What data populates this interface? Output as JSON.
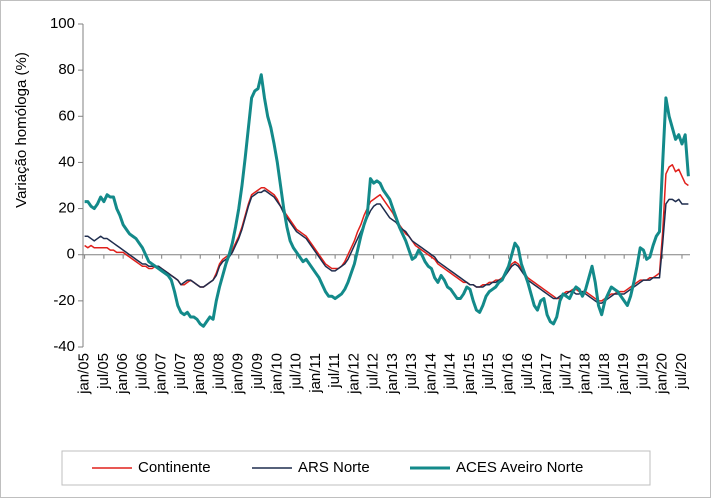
{
  "chart_data": {
    "type": "line",
    "ylabel": "Variação homóloga (%)",
    "ylim": [
      -40,
      100
    ],
    "yticks": [
      -40,
      -20,
      0,
      20,
      40,
      60,
      80,
      100
    ],
    "legend": "bottom",
    "categories": [
      "jan/05",
      null,
      null,
      null,
      null,
      null,
      "jul/05",
      null,
      null,
      null,
      null,
      null,
      "jan/06",
      null,
      null,
      null,
      null,
      null,
      "jul/06",
      null,
      null,
      null,
      null,
      null,
      "jan/07",
      null,
      null,
      null,
      null,
      null,
      "jul/07",
      null,
      null,
      null,
      null,
      null,
      "jan/08",
      null,
      null,
      null,
      null,
      null,
      "jul/08",
      null,
      null,
      null,
      null,
      null,
      "jan/09",
      null,
      null,
      null,
      null,
      null,
      "jul/09",
      null,
      null,
      null,
      null,
      null,
      "jan/10",
      null,
      null,
      null,
      null,
      null,
      "jul/10",
      null,
      null,
      null,
      null,
      null,
      "jan/11",
      null,
      null,
      null,
      null,
      null,
      "jul/11",
      null,
      null,
      null,
      null,
      null,
      "jan/12",
      null,
      null,
      null,
      null,
      null,
      "jul/12",
      null,
      null,
      null,
      null,
      null,
      "jan/13",
      null,
      null,
      null,
      null,
      null,
      "jul/13",
      null,
      null,
      null,
      null,
      null,
      "jan/14",
      null,
      null,
      null,
      null,
      null,
      "jul/14",
      null,
      null,
      null,
      null,
      null,
      "jan/15",
      null,
      null,
      null,
      null,
      null,
      "jul/15",
      null,
      null,
      null,
      null,
      null,
      "jan/16",
      null,
      null,
      null,
      null,
      null,
      "jul/16",
      null,
      null,
      null,
      null,
      null,
      "jan/17",
      null,
      null,
      null,
      null,
      null,
      "jul/17",
      null,
      null,
      null,
      null,
      null,
      "jan/18",
      null,
      null,
      null,
      null,
      null,
      "jul/18",
      null,
      null,
      null,
      null,
      null,
      "jan/19",
      null,
      null,
      null,
      null,
      null,
      "jul/19",
      null,
      null,
      null,
      null,
      null,
      "jan/20",
      null,
      null,
      null,
      null,
      null,
      "jul/20",
      null,
      null
    ],
    "series": [
      {
        "name": "Continente",
        "color": "#e0201b",
        "width": 1.5,
        "values": [
          4,
          3,
          4,
          3,
          3,
          3,
          3,
          3,
          2,
          2,
          1,
          1,
          1,
          0,
          -1,
          -2,
          -3,
          -4,
          -5,
          -5,
          -6,
          -6,
          -5,
          -5,
          -6,
          -7,
          -8,
          -9,
          -10,
          -11,
          -13,
          -13,
          -12,
          -11,
          -12,
          -13,
          -14,
          -14,
          -13,
          -12,
          -11,
          -8,
          -4,
          -2,
          -1,
          0,
          2,
          5,
          8,
          12,
          17,
          22,
          26,
          27,
          28,
          29,
          29,
          28,
          27,
          26,
          24,
          21,
          19,
          17,
          15,
          13,
          11,
          10,
          9,
          8,
          6,
          4,
          2,
          0,
          -2,
          -4,
          -5,
          -6,
          -6,
          -6,
          -5,
          -3,
          0,
          3,
          6,
          10,
          13,
          17,
          20,
          23,
          24,
          25,
          26,
          24,
          22,
          20,
          18,
          15,
          13,
          11,
          9,
          8,
          6,
          4,
          3,
          2,
          1,
          0,
          -1,
          -2,
          -4,
          -5,
          -6,
          -7,
          -8,
          -9,
          -10,
          -11,
          -12,
          -12,
          -13,
          -13,
          -14,
          -14,
          -13,
          -13,
          -12,
          -12,
          -11,
          -11,
          -10,
          -8,
          -6,
          -4,
          -3,
          -4,
          -6,
          -8,
          -10,
          -11,
          -12,
          -13,
          -14,
          -15,
          -16,
          -17,
          -18,
          -19,
          -19,
          -17,
          -16,
          -16,
          -15,
          -15,
          -16,
          -16,
          -16,
          -17,
          -18,
          -19,
          -20,
          -20,
          -19,
          -18,
          -17,
          -17,
          -16,
          -16,
          -16,
          -15,
          -14,
          -13,
          -12,
          -11,
          -11,
          -11,
          -10,
          -10,
          -9,
          -8,
          10,
          35,
          38,
          39,
          36,
          37,
          34,
          31,
          30
        ]
      },
      {
        "name": "ARS Norte",
        "color": "#1f2d4e",
        "width": 1.5,
        "values": [
          8,
          8,
          7,
          6,
          7,
          8,
          7,
          7,
          6,
          5,
          4,
          3,
          2,
          1,
          0,
          -1,
          -2,
          -3,
          -4,
          -4,
          -5,
          -5,
          -5,
          -5,
          -6,
          -7,
          -8,
          -9,
          -10,
          -11,
          -13,
          -12,
          -11,
          -11,
          -12,
          -13,
          -14,
          -14,
          -13,
          -12,
          -11,
          -9,
          -5,
          -3,
          -2,
          -1,
          1,
          4,
          7,
          11,
          16,
          21,
          25,
          26,
          27,
          27,
          28,
          27,
          26,
          25,
          23,
          21,
          18,
          16,
          14,
          12,
          10,
          9,
          8,
          7,
          5,
          3,
          1,
          -1,
          -3,
          -5,
          -6,
          -7,
          -7,
          -6,
          -5,
          -4,
          -2,
          1,
          4,
          7,
          10,
          13,
          16,
          19,
          21,
          22,
          22,
          20,
          18,
          16,
          15,
          14,
          12,
          11,
          10,
          8,
          6,
          5,
          4,
          3,
          2,
          1,
          0,
          -1,
          -3,
          -4,
          -5,
          -6,
          -7,
          -8,
          -9,
          -10,
          -11,
          -12,
          -13,
          -13,
          -14,
          -14,
          -14,
          -13,
          -13,
          -12,
          -12,
          -11,
          -11,
          -9,
          -7,
          -5,
          -4,
          -5,
          -7,
          -9,
          -11,
          -12,
          -13,
          -14,
          -15,
          -16,
          -17,
          -18,
          -19,
          -19,
          -18,
          -17,
          -17,
          -16,
          -16,
          -17,
          -17,
          -16,
          -17,
          -18,
          -19,
          -20,
          -21,
          -21,
          -20,
          -19,
          -18,
          -17,
          -17,
          -17,
          -17,
          -16,
          -15,
          -14,
          -13,
          -12,
          -11,
          -11,
          -11,
          -10,
          -10,
          -10,
          5,
          22,
          24,
          24,
          23,
          24,
          22,
          22,
          22
        ]
      },
      {
        "name": "ACES Aveiro Norte",
        "color": "#138a8a",
        "width": 3,
        "values": [
          23,
          23,
          21,
          20,
          22,
          25,
          23,
          26,
          25,
          25,
          20,
          17,
          13,
          11,
          9,
          8,
          7,
          5,
          3,
          0,
          -3,
          -4,
          -5,
          -6,
          -7,
          -8,
          -9,
          -11,
          -16,
          -22,
          -25,
          -26,
          -25,
          -27,
          -27,
          -28,
          -30,
          -31,
          -29,
          -27,
          -28,
          -20,
          -14,
          -9,
          -4,
          0,
          5,
          12,
          20,
          30,
          42,
          55,
          68,
          71,
          72,
          78,
          68,
          60,
          55,
          48,
          40,
          30,
          20,
          12,
          6,
          3,
          1,
          -1,
          -3,
          -2,
          -4,
          -6,
          -8,
          -10,
          -13,
          -16,
          -18,
          -18,
          -19,
          -18,
          -17,
          -15,
          -12,
          -8,
          -4,
          2,
          8,
          13,
          17,
          33,
          31,
          32,
          31,
          28,
          26,
          24,
          20,
          16,
          12,
          9,
          6,
          2,
          -2,
          -1,
          2,
          0,
          -3,
          -5,
          -6,
          -10,
          -12,
          -9,
          -11,
          -14,
          -15,
          -17,
          -19,
          -19,
          -17,
          -14,
          -15,
          -20,
          -24,
          -25,
          -22,
          -18,
          -16,
          -15,
          -14,
          -12,
          -11,
          -8,
          -5,
          0,
          5,
          3,
          -4,
          -8,
          -12,
          -17,
          -22,
          -24,
          -20,
          -19,
          -26,
          -29,
          -30,
          -27,
          -20,
          -17,
          -18,
          -19,
          -16,
          -14,
          -15,
          -18,
          -15,
          -10,
          -5,
          -12,
          -22,
          -26,
          -20,
          -17,
          -14,
          -15,
          -16,
          -18,
          -20,
          -22,
          -18,
          -12,
          -5,
          3,
          2,
          -2,
          -1,
          4,
          8,
          10,
          40,
          68,
          60,
          55,
          50,
          52,
          48,
          52,
          34
        ]
      }
    ]
  }
}
